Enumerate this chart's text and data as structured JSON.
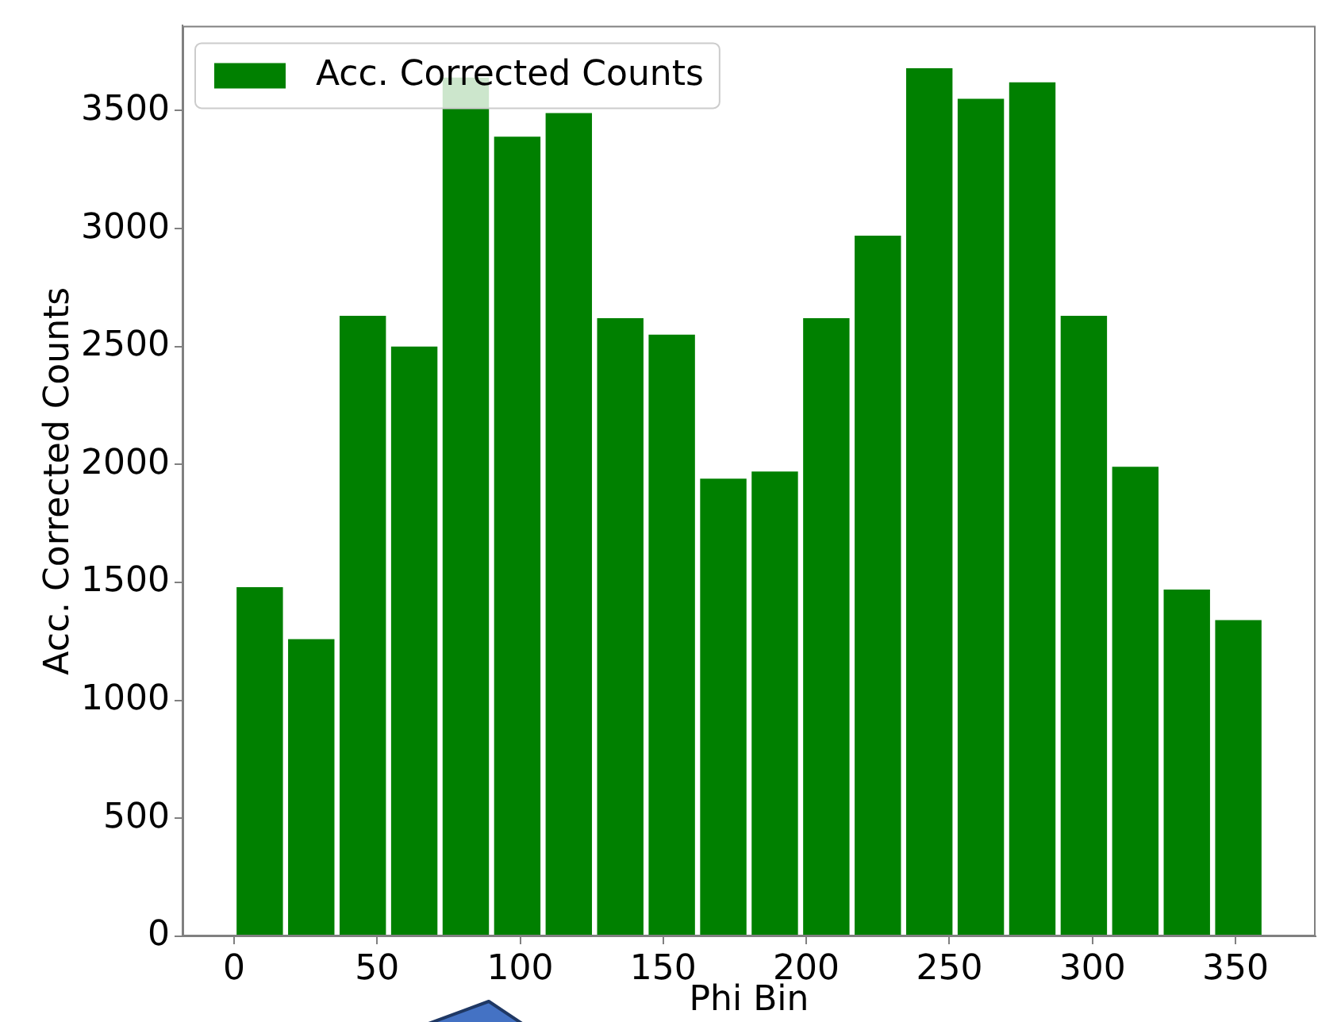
{
  "chart_data": {
    "type": "histogram",
    "xlabel": "Phi Bin",
    "ylabel": "Acc. Corrected Counts",
    "bins": [
      0,
      18,
      36,
      54,
      72,
      90,
      108,
      126,
      144,
      162,
      180,
      198,
      216,
      234,
      252,
      270,
      288,
      306,
      324,
      342,
      360
    ],
    "series": [
      {
        "name": "Acc. Corrected Counts",
        "color": "#008000",
        "values": [
          1480,
          1260,
          2630,
          2500,
          3640,
          3390,
          3490,
          2620,
          2550,
          1940,
          1970,
          2620,
          2970,
          3680,
          3550,
          3620,
          2630,
          1990,
          1470,
          1340
        ]
      }
    ],
    "legend": "top left",
    "xlim": [
      -18,
      378
    ],
    "xticks": [
      0,
      50,
      100,
      150,
      200,
      250,
      300,
      350
    ],
    "ylim": [
      0,
      3860
    ],
    "yticks": [
      0,
      500,
      1000,
      1500,
      2000,
      2500,
      3000,
      3500
    ]
  }
}
